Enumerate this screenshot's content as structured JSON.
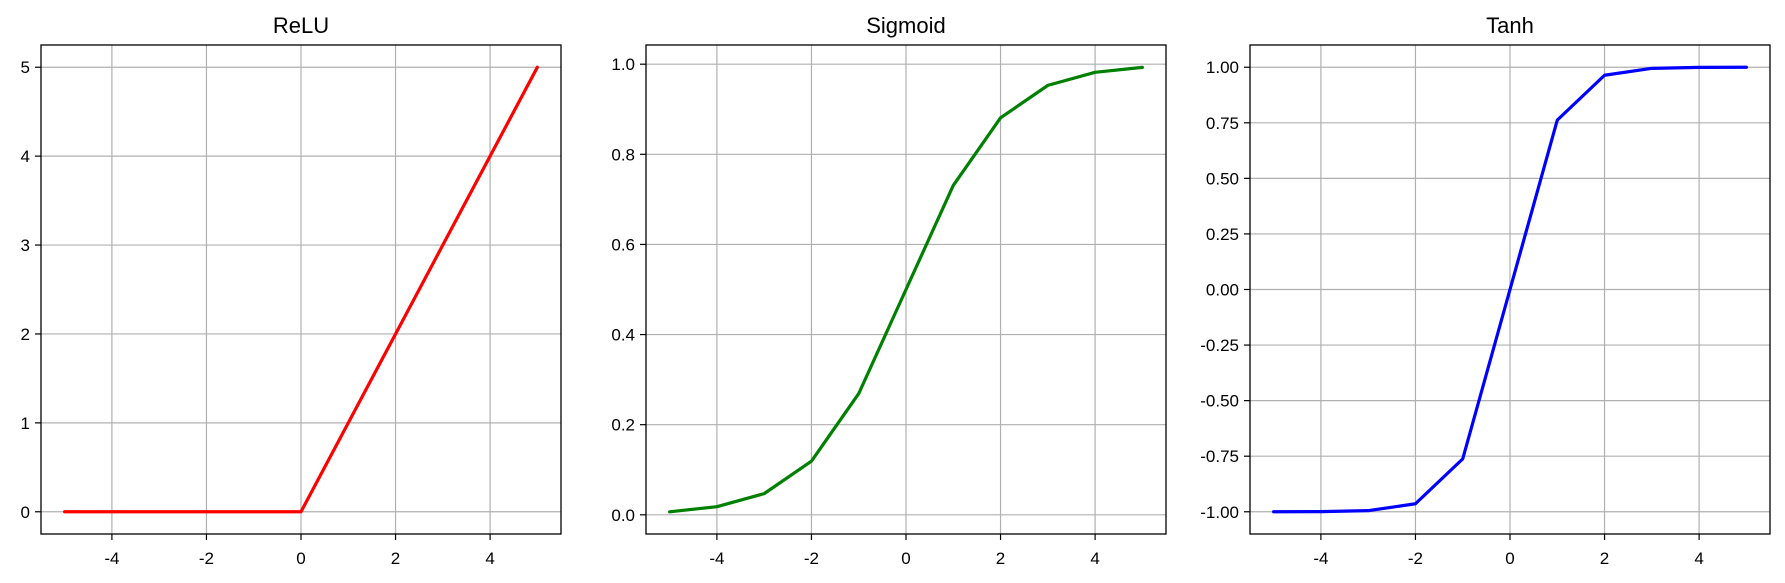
{
  "chart_data": [
    {
      "type": "line",
      "title": "ReLU",
      "xlabel": "",
      "ylabel": "",
      "x": [
        -5,
        -4,
        -3,
        -2,
        -1,
        0,
        1,
        2,
        3,
        4,
        5
      ],
      "series": [
        {
          "values": [
            0,
            0,
            0,
            0,
            0,
            0,
            1,
            2,
            3,
            4,
            5
          ],
          "color": "#ff0000"
        }
      ],
      "xlim": [
        -5.5,
        5.5
      ],
      "ylim": [
        -0.25,
        5.25
      ],
      "xticks": [
        -4,
        -2,
        0,
        2,
        4
      ],
      "xtick_labels": [
        "-4",
        "-2",
        "0",
        "2",
        "4"
      ],
      "yticks": [
        0,
        1,
        2,
        3,
        4,
        5
      ],
      "ytick_labels": [
        "0",
        "1",
        "2",
        "3",
        "4",
        "5"
      ],
      "grid": true
    },
    {
      "type": "line",
      "title": "Sigmoid",
      "xlabel": "",
      "ylabel": "",
      "x": [
        -5,
        -4,
        -3,
        -2,
        -1,
        0,
        1,
        2,
        3,
        4,
        5
      ],
      "series": [
        {
          "values": [
            0.0067,
            0.018,
            0.047,
            0.119,
            0.269,
            0.5,
            0.731,
            0.881,
            0.953,
            0.982,
            0.993
          ],
          "color": "#008000"
        }
      ],
      "xlim": [
        -5.5,
        5.5
      ],
      "ylim": [
        -0.0426,
        1.0426
      ],
      "xticks": [
        -4,
        -2,
        0,
        2,
        4
      ],
      "xtick_labels": [
        "-4",
        "-2",
        "0",
        "2",
        "4"
      ],
      "yticks": [
        0,
        0.2,
        0.4,
        0.6,
        0.8,
        1.0
      ],
      "ytick_labels": [
        "0.0",
        "0.2",
        "0.4",
        "0.6",
        "0.8",
        "1.0"
      ],
      "grid": true
    },
    {
      "type": "line",
      "title": "Tanh",
      "xlabel": "",
      "ylabel": "",
      "x": [
        -5,
        -4,
        -3,
        -2,
        -1,
        0,
        1,
        2,
        3,
        4,
        5
      ],
      "series": [
        {
          "values": [
            -0.9999,
            -0.9993,
            -0.995,
            -0.964,
            -0.762,
            0,
            0.762,
            0.964,
            0.995,
            0.9993,
            0.9999
          ],
          "color": "#0000ff"
        }
      ],
      "xlim": [
        -5.5,
        5.5
      ],
      "ylim": [
        -1.1,
        1.1
      ],
      "xticks": [
        -4,
        -2,
        0,
        2,
        4
      ],
      "xtick_labels": [
        "-4",
        "-2",
        "0",
        "2",
        "4"
      ],
      "yticks": [
        -1.0,
        -0.75,
        -0.5,
        -0.25,
        0,
        0.25,
        0.5,
        0.75,
        1.0
      ],
      "ytick_labels": [
        "-1.00",
        "-0.75",
        "-0.50",
        "-0.25",
        "0.00",
        "0.25",
        "0.50",
        "0.75",
        "1.00"
      ],
      "grid": true
    }
  ]
}
